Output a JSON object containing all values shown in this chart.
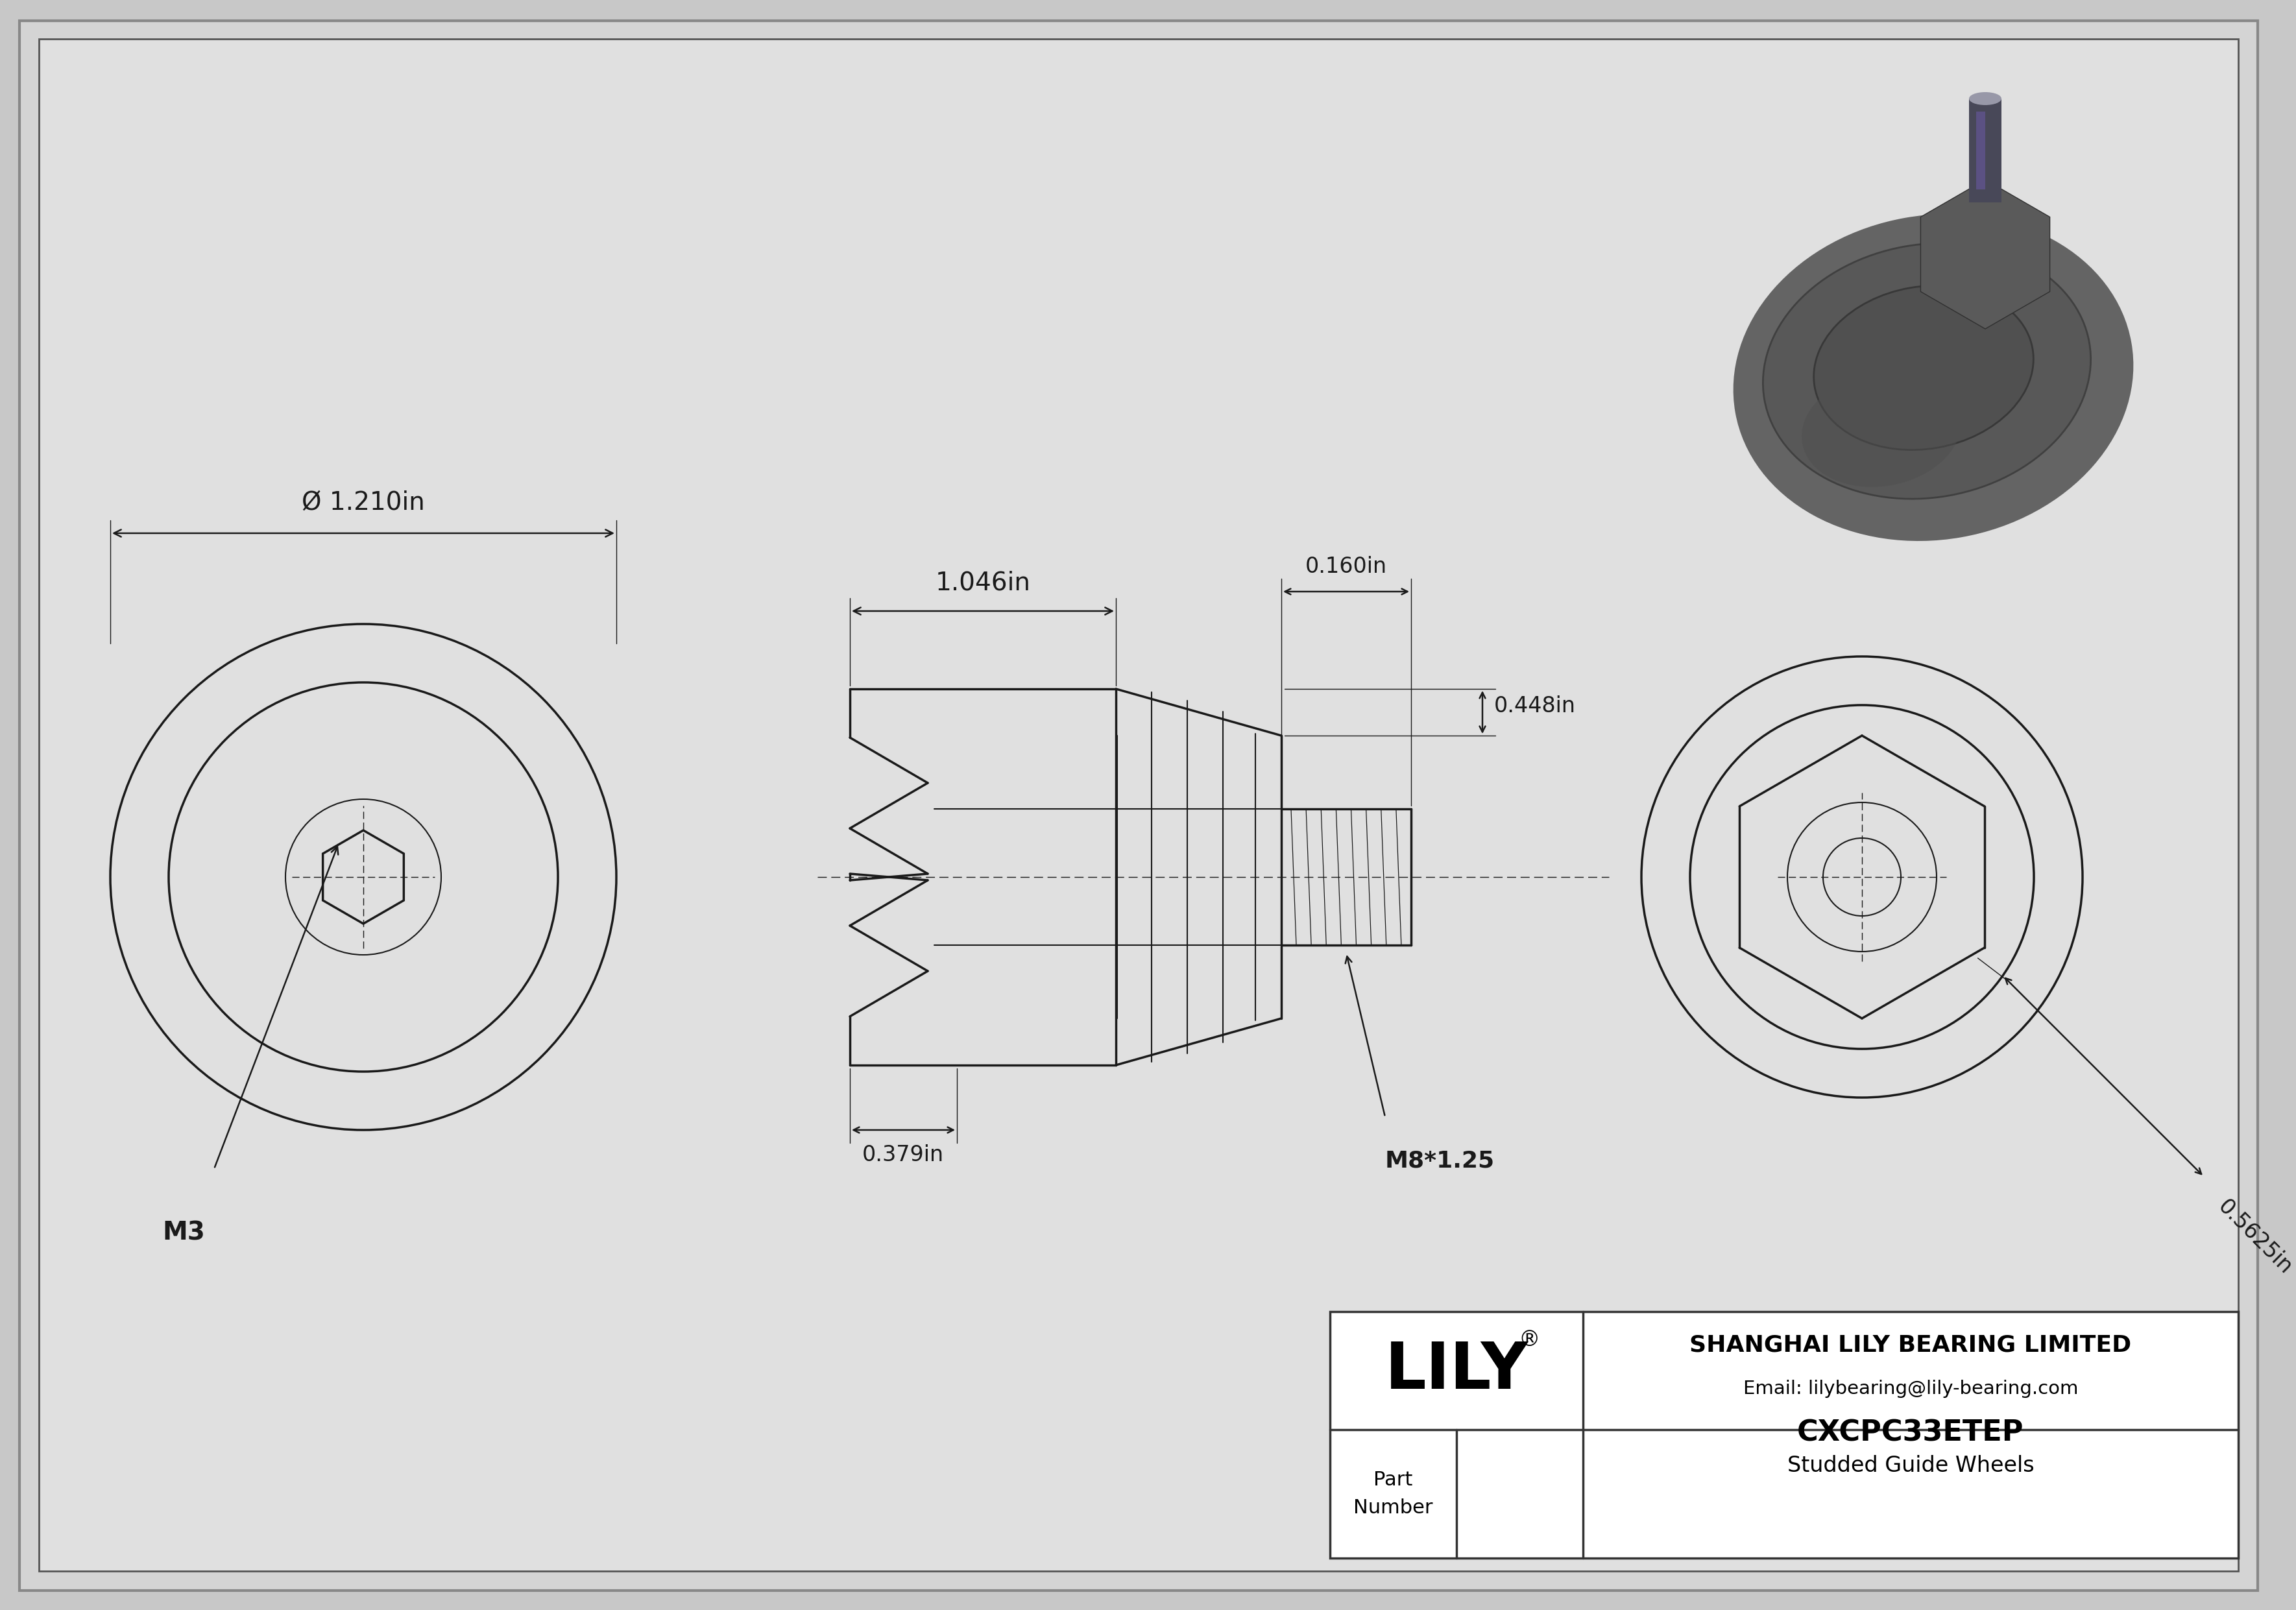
{
  "bg_color": "#d8d8d8",
  "inner_bg": "#e8e8e8",
  "drawing_bg": "#dcdcdc",
  "line_color": "#1a1a1a",
  "dim_color": "#1a1a1a",
  "company": "SHANGHAI LILY BEARING LIMITED",
  "email": "Email: lilybearing@lily-bearing.com",
  "part_number": "CXCPC33ETEP",
  "part_desc": "Studded Guide Wheels",
  "lily_brand": "LILY",
  "dim_phi": "Ø 1.210in",
  "dim_1046": "1.046in",
  "dim_0160": "0.160in",
  "dim_0448": "0.448in",
  "dim_0379": "0.379in",
  "dim_M8": "M8*1.25",
  "dim_M3": "M3",
  "dim_05625": "0.5625in",
  "lw": 2.5,
  "thin_lw": 1.5,
  "dim_lw": 1.8
}
